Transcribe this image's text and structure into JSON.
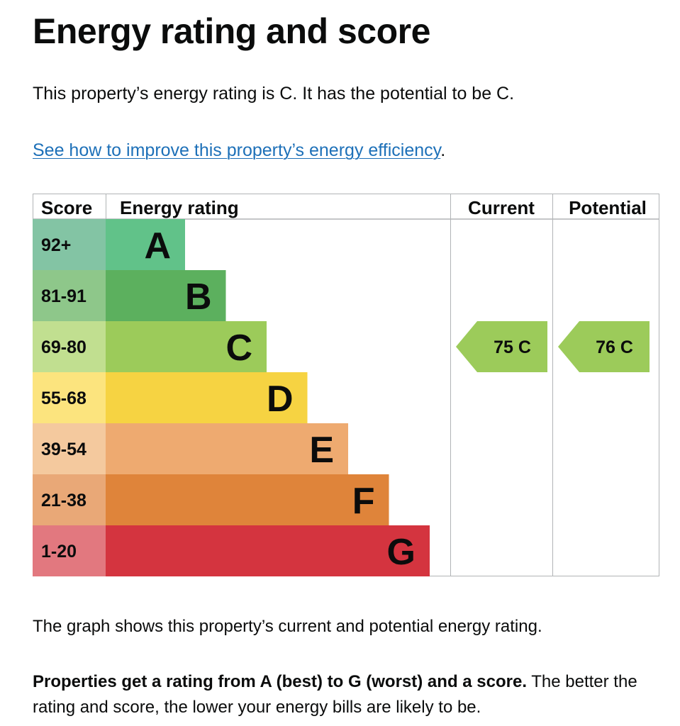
{
  "page": {
    "title": "Energy rating and score",
    "intro": "This property’s energy rating is C. It has the potential to be C.",
    "link_text": "See how to improve this property’s energy efficiency",
    "link_suffix": ".",
    "caption": "The graph shows this property’s current and potential energy rating.",
    "summary_bold": "Properties get a rating from A (best) to G (worst) and a score.",
    "summary_rest": " The better the rating and score, the lower your energy bills are likely to be."
  },
  "chart_data": {
    "type": "table",
    "headers": {
      "score": "Score",
      "rating": "Energy rating",
      "current": "Current",
      "potential": "Potential"
    },
    "bands": [
      {
        "letter": "A",
        "score_range": "92+",
        "color": "#61c289",
        "light_color": "#83c4a4"
      },
      {
        "letter": "B",
        "score_range": "81-91",
        "color": "#5cb05e",
        "light_color": "#8ec78a"
      },
      {
        "letter": "C",
        "score_range": "69-80",
        "color": "#9ccb5a",
        "light_color": "#c1df90"
      },
      {
        "letter": "D",
        "score_range": "55-68",
        "color": "#f6d342",
        "light_color": "#fce47e"
      },
      {
        "letter": "E",
        "score_range": "39-54",
        "color": "#eeaa70",
        "light_color": "#f4c99e"
      },
      {
        "letter": "F",
        "score_range": "21-38",
        "color": "#df843a",
        "light_color": "#e9a877"
      },
      {
        "letter": "G",
        "score_range": "1-20",
        "color": "#d4343f",
        "light_color": "#e2787f"
      }
    ],
    "current": {
      "score": 75,
      "letter": "C",
      "label": "75 C",
      "color": "#9ccb5a"
    },
    "potential": {
      "score": 76,
      "letter": "C",
      "label": "76 C",
      "color": "#9ccb5a"
    }
  }
}
